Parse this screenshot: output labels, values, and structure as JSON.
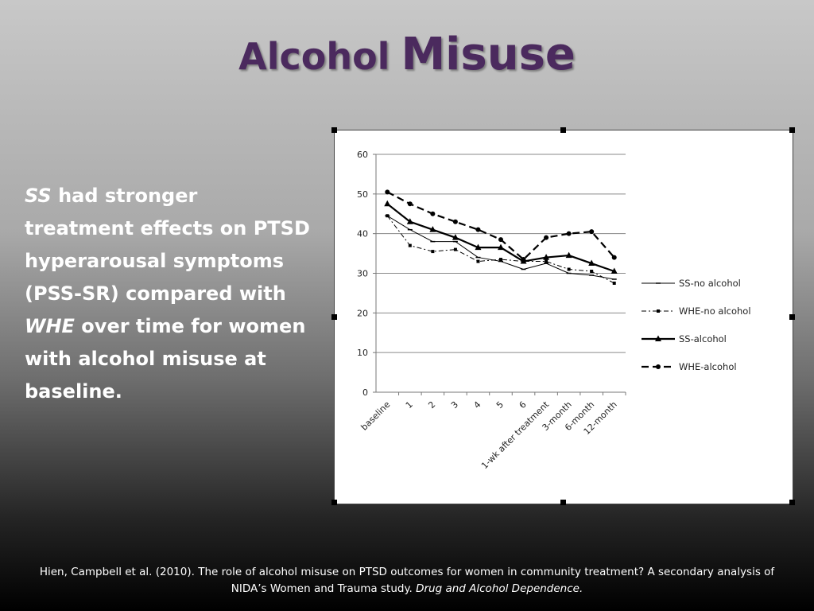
{
  "slide": {
    "title_part1": "Alcohol",
    "title_part2": "Misuse",
    "body": {
      "p1": "SS",
      "p2": " had stronger treatment effects on PTSD hyperarousal symptoms (PSS-SR) compared with ",
      "p3": "WHE",
      "p4": " over time for women with alcohol misuse at baseline."
    },
    "citation": {
      "main": "Hien, Campbell et al. (2010). The role of alcohol misuse on PTSD outcomes for women in community treatment? A secondary analysis of NIDA’s Women and Trauma study. ",
      "journal": "Drug and Alcohol Dependence."
    }
  },
  "chart_data": {
    "type": "line",
    "categories": [
      "baseline",
      "1",
      "2",
      "3",
      "4",
      "5",
      "6",
      "1-wk after treatment",
      "3-month",
      "6-month",
      "12-month"
    ],
    "ylim": [
      0,
      60
    ],
    "yticks": [
      0,
      10,
      20,
      30,
      40,
      50,
      60
    ],
    "grid": true,
    "legend_position": "right",
    "series": [
      {
        "name": "SS-no alcohol",
        "values": [
          44.5,
          41,
          38,
          38,
          34,
          33,
          31,
          32.5,
          30,
          29.5,
          28.5
        ],
        "color": "#000000",
        "dash": "solid",
        "marker": "dash",
        "width": 1
      },
      {
        "name": "WHE-no alcohol",
        "values": [
          44.5,
          37,
          35.5,
          36,
          33,
          33.5,
          33,
          33,
          31,
          30.5,
          27.5
        ],
        "color": "#000000",
        "dash": "dashdot",
        "marker": "square",
        "width": 1
      },
      {
        "name": "SS-alcohol",
        "values": [
          47.5,
          43,
          41,
          39,
          36.5,
          36.5,
          33,
          34,
          34.5,
          32.5,
          30.5
        ],
        "color": "#000000",
        "dash": "solid",
        "marker": "triangle",
        "width": 2.2
      },
      {
        "name": "WHE-alcohol",
        "values": [
          50.5,
          47.5,
          45,
          43,
          41,
          38.5,
          33.5,
          39,
          40,
          40.5,
          34
        ],
        "color": "#000000",
        "dash": "dashed",
        "marker": "circle",
        "width": 2.2
      }
    ]
  }
}
